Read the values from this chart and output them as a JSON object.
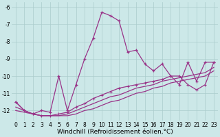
{
  "x": [
    0,
    1,
    2,
    3,
    4,
    5,
    6,
    7,
    8,
    9,
    10,
    11,
    12,
    13,
    14,
    15,
    16,
    17,
    18,
    19,
    20,
    21,
    22,
    23
  ],
  "line1": [
    -11.5,
    -12.0,
    -12.2,
    -12.0,
    -12.1,
    -10.0,
    -12.0,
    -10.5,
    -9.0,
    -7.8,
    -6.3,
    -6.5,
    -6.8,
    -8.6,
    -8.5,
    -9.3,
    -9.7,
    -9.3,
    -10.0,
    -10.5,
    -9.2,
    -10.3,
    -9.2,
    -9.2
  ],
  "line2": [
    -11.5,
    -12.0,
    -12.2,
    -12.3,
    -12.3,
    -12.2,
    -12.1,
    -11.8,
    -11.6,
    -11.3,
    -11.1,
    -10.9,
    -10.7,
    -10.6,
    -10.5,
    -10.4,
    -10.3,
    -10.2,
    -10.0,
    -10.0,
    -10.5,
    -10.8,
    -10.5,
    -9.2
  ],
  "line3": [
    -11.8,
    -12.0,
    -12.2,
    -12.3,
    -12.3,
    -12.3,
    -12.2,
    -12.0,
    -11.8,
    -11.6,
    -11.4,
    -11.2,
    -11.1,
    -10.9,
    -10.7,
    -10.6,
    -10.5,
    -10.3,
    -10.2,
    -10.1,
    -10.0,
    -9.9,
    -9.8,
    -9.5
  ],
  "line4": [
    -12.0,
    -12.1,
    -12.2,
    -12.3,
    -12.3,
    -12.3,
    -12.3,
    -12.2,
    -12.0,
    -11.9,
    -11.7,
    -11.5,
    -11.4,
    -11.2,
    -11.0,
    -10.9,
    -10.7,
    -10.6,
    -10.4,
    -10.3,
    -10.2,
    -10.1,
    -10.0,
    -9.7
  ],
  "bg_color": "#cce8e8",
  "line_color": "#993388",
  "grid_color": "#aacccc",
  "ylim": [
    -12.6,
    -5.7
  ],
  "yticks": [
    -12,
    -11,
    -10,
    -9,
    -8,
    -7,
    -6
  ],
  "xticks": [
    0,
    1,
    2,
    3,
    4,
    5,
    6,
    7,
    8,
    9,
    10,
    11,
    12,
    13,
    14,
    15,
    16,
    17,
    18,
    19,
    20,
    21,
    22,
    23
  ],
  "xlabel": "Windchill (Refroidissement éolien,°C)",
  "xlabel_fontsize": 6.5,
  "tick_fontsize": 5.5
}
